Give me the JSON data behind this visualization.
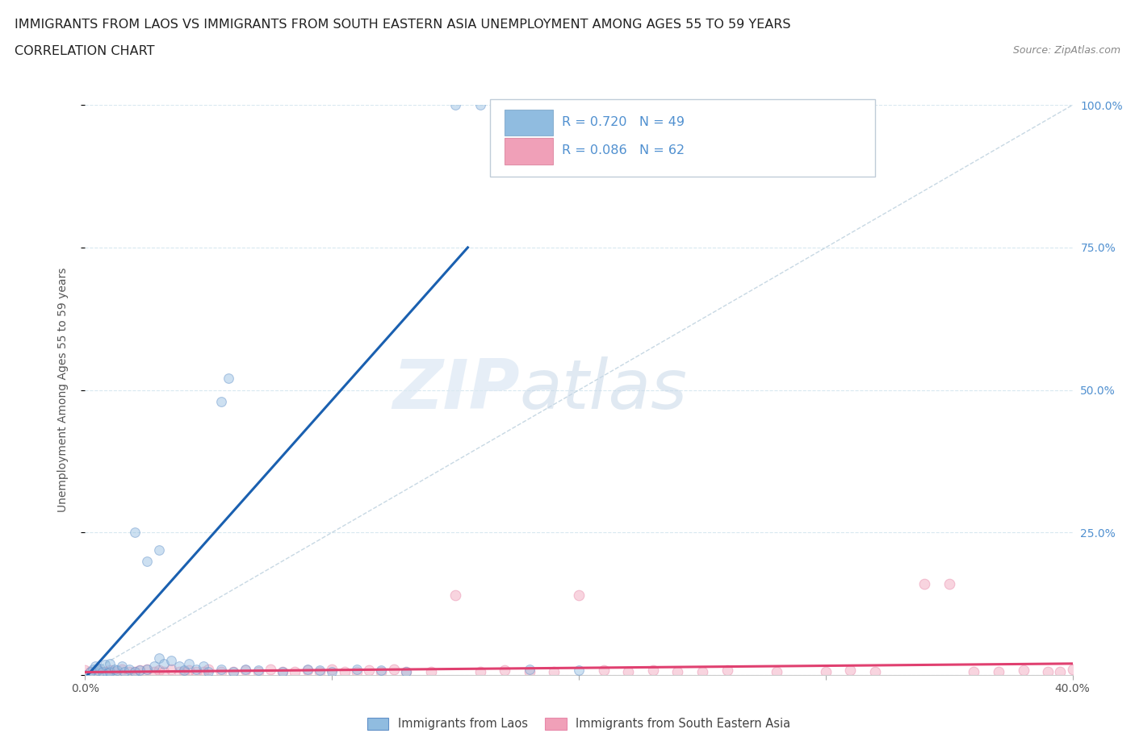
{
  "title_line1": "IMMIGRANTS FROM LAOS VS IMMIGRANTS FROM SOUTH EASTERN ASIA UNEMPLOYMENT AMONG AGES 55 TO 59 YEARS",
  "title_line2": "CORRELATION CHART",
  "source_text": "Source: ZipAtlas.com",
  "ylabel": "Unemployment Among Ages 55 to 59 years",
  "xlim": [
    0.0,
    0.4
  ],
  "ylim": [
    0.0,
    1.0
  ],
  "xticks": [
    0.0,
    0.1,
    0.2,
    0.3,
    0.4
  ],
  "xticklabels_left": "0.0%",
  "xticklabels_right": "40.0%",
  "ytick_vals": [
    0.0,
    0.25,
    0.5,
    0.75,
    1.0
  ],
  "ytick_labels": [
    "",
    "25.0%",
    "50.0%",
    "75.0%",
    "100.0%"
  ],
  "watermark_zip": "ZIP",
  "watermark_atlas": "atlas",
  "blue_color": "#90bce0",
  "pink_color": "#f0a0b8",
  "blue_line_color": "#1a60b0",
  "pink_line_color": "#e04070",
  "tick_label_color": "#5090d0",
  "grid_color": "#d8e8f0",
  "background_color": "#ffffff",
  "legend_box_color": "#f8f8ff",
  "legend_border_color": "#c8d8e8",
  "blue_R": "0.720",
  "blue_N": "49",
  "pink_R": "0.086",
  "pink_N": "62",
  "blue_scatter_x": [
    0.0,
    0.002,
    0.003,
    0.004,
    0.005,
    0.006,
    0.007,
    0.008,
    0.009,
    0.01,
    0.01,
    0.012,
    0.013,
    0.015,
    0.016,
    0.018,
    0.02,
    0.022,
    0.025,
    0.028,
    0.03,
    0.032,
    0.035,
    0.038,
    0.04,
    0.042,
    0.045,
    0.048,
    0.05,
    0.055,
    0.02,
    0.025,
    0.03,
    0.055,
    0.058,
    0.06,
    0.065,
    0.07,
    0.08,
    0.09,
    0.095,
    0.1,
    0.11,
    0.12,
    0.13,
    0.15,
    0.16,
    0.18,
    0.2
  ],
  "blue_scatter_y": [
    0.0,
    0.005,
    0.01,
    0.015,
    0.008,
    0.012,
    0.005,
    0.018,
    0.003,
    0.006,
    0.02,
    0.01,
    0.008,
    0.015,
    0.005,
    0.01,
    0.005,
    0.008,
    0.01,
    0.015,
    0.03,
    0.02,
    0.025,
    0.015,
    0.008,
    0.02,
    0.01,
    0.015,
    0.005,
    0.01,
    0.25,
    0.2,
    0.22,
    0.48,
    0.52,
    0.005,
    0.01,
    0.008,
    0.005,
    0.01,
    0.008,
    0.005,
    0.01,
    0.008,
    0.005,
    1.0,
    1.0,
    0.01,
    0.008
  ],
  "pink_scatter_x": [
    0.0,
    0.002,
    0.005,
    0.008,
    0.01,
    0.012,
    0.015,
    0.018,
    0.02,
    0.022,
    0.025,
    0.028,
    0.03,
    0.032,
    0.035,
    0.038,
    0.04,
    0.042,
    0.045,
    0.048,
    0.05,
    0.055,
    0.06,
    0.065,
    0.07,
    0.075,
    0.08,
    0.085,
    0.09,
    0.095,
    0.1,
    0.105,
    0.11,
    0.115,
    0.12,
    0.125,
    0.13,
    0.14,
    0.15,
    0.16,
    0.17,
    0.18,
    0.19,
    0.2,
    0.21,
    0.22,
    0.23,
    0.24,
    0.25,
    0.26,
    0.28,
    0.3,
    0.31,
    0.32,
    0.34,
    0.35,
    0.36,
    0.37,
    0.38,
    0.39,
    0.395,
    0.4
  ],
  "pink_scatter_y": [
    0.008,
    0.005,
    0.01,
    0.005,
    0.008,
    0.005,
    0.01,
    0.006,
    0.005,
    0.008,
    0.01,
    0.005,
    0.008,
    0.005,
    0.01,
    0.006,
    0.005,
    0.008,
    0.006,
    0.005,
    0.01,
    0.006,
    0.005,
    0.008,
    0.005,
    0.01,
    0.006,
    0.005,
    0.008,
    0.006,
    0.01,
    0.006,
    0.005,
    0.008,
    0.005,
    0.01,
    0.006,
    0.005,
    0.14,
    0.005,
    0.008,
    0.006,
    0.005,
    0.14,
    0.008,
    0.005,
    0.008,
    0.006,
    0.005,
    0.008,
    0.006,
    0.005,
    0.008,
    0.006,
    0.16,
    0.16,
    0.006,
    0.005,
    0.008,
    0.006,
    0.005,
    0.01
  ],
  "blue_trend_x": [
    0.0,
    0.155
  ],
  "blue_trend_y": [
    -0.005,
    0.75
  ],
  "pink_trend_x": [
    0.0,
    0.4
  ],
  "pink_trend_y": [
    0.005,
    0.02
  ],
  "dash_line_x": [
    0.28,
    0.4
  ],
  "dash_line_y": [
    0.7,
    1.0
  ],
  "scatter_size": 60,
  "scatter_alpha": 0.45
}
